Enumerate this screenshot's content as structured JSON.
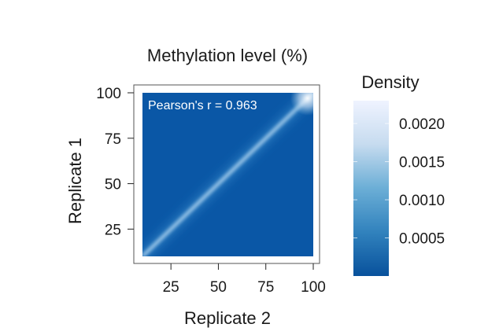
{
  "chart_data": {
    "type": "heatmap",
    "title": "Methylation level (%)",
    "xlabel": "Replicate 2",
    "ylabel": "Replicate 1",
    "xlim": [
      10,
      100
    ],
    "ylim": [
      10,
      100
    ],
    "xticks": [
      25,
      50,
      75,
      100
    ],
    "yticks": [
      25,
      50,
      75,
      100
    ],
    "annotation": "Pearson's r = 0.963",
    "pearson_r": 0.963,
    "density_pattern": "concentrated along the diagonal y = x, maximum near (100, 100)",
    "diagonal_ridge": {
      "x": [
        10,
        25,
        50,
        75,
        90,
        100
      ],
      "y": [
        10,
        25,
        50,
        75,
        90,
        100
      ]
    },
    "colorbar": {
      "label": "Density",
      "range": [
        0,
        0.0023
      ],
      "ticks": [
        0.0005,
        0.001,
        0.0015,
        0.002
      ],
      "tick_labels": [
        "0.0005",
        "0.0010",
        "0.0015",
        "0.0020"
      ],
      "colormap": [
        "#08519c",
        "#3182bd",
        "#6baed6",
        "#c6dbef",
        "#eff3ff"
      ]
    },
    "grid": false,
    "colors": {
      "background": "#0a57a6",
      "axis": "#222222"
    }
  }
}
